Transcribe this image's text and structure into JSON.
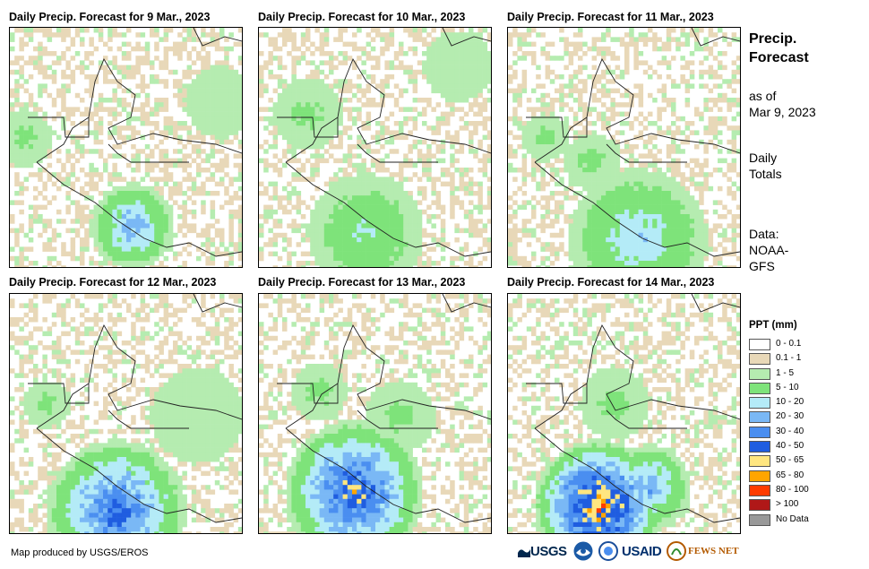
{
  "panels": [
    {
      "title": "Daily Precip. Forecast for 9 Mar., 2023"
    },
    {
      "title": "Daily Precip. Forecast for 10 Mar., 2023"
    },
    {
      "title": "Daily Precip. Forecast for 11 Mar., 2023"
    },
    {
      "title": "Daily Precip. Forecast for 12 Mar., 2023"
    },
    {
      "title": "Daily Precip. Forecast for 13 Mar., 2023"
    },
    {
      "title": "Daily Precip. Forecast for 14 Mar., 2023"
    }
  ],
  "sidebar": {
    "title_line1": "Precip.",
    "title_line2": "Forecast",
    "asof_line1": "as of",
    "asof_line2": "Mar 9, 2023",
    "totals_line1": "Daily",
    "totals_line2": "Totals",
    "data_line1": "Data:",
    "data_line2": "NOAA-",
    "data_line3": "GFS"
  },
  "legend": {
    "title": "PPT (mm)",
    "items": [
      {
        "label": "0 - 0.1",
        "color": "#ffffff"
      },
      {
        "label": "0.1 - 1",
        "color": "#e8d8b8"
      },
      {
        "label": "1 - 5",
        "color": "#b5ecb0"
      },
      {
        "label": "5 - 10",
        "color": "#7ee37a"
      },
      {
        "label": "10 - 20",
        "color": "#b4ebf7"
      },
      {
        "label": "20 - 30",
        "color": "#7ab8f5"
      },
      {
        "label": "30 - 40",
        "color": "#4a8ef0"
      },
      {
        "label": "40 - 50",
        "color": "#1f5de0"
      },
      {
        "label": "50 - 65",
        "color": "#ffe680"
      },
      {
        "label": "65 - 80",
        "color": "#ffa500"
      },
      {
        "label": "80 - 100",
        "color": "#ff3c00"
      },
      {
        "label": "> 100",
        "color": "#b01818"
      },
      {
        "label": "No Data",
        "color": "#999999"
      }
    ]
  },
  "credit": "Map produced by USGS/EROS",
  "logos": {
    "usgs": "USGS",
    "usaid": "USAID",
    "fewsnet": "FEWS NET"
  }
}
